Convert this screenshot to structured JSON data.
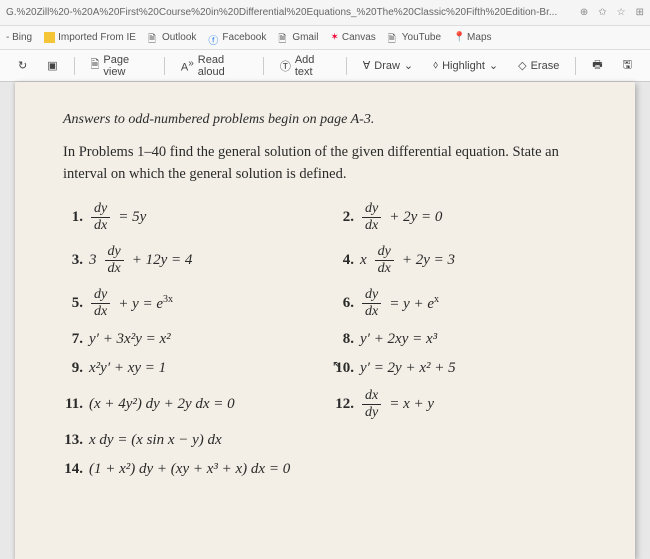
{
  "browser": {
    "url": "G.%20Zill%20-%20A%20First%20Course%20in%20Differential%20Equations_%20The%20Classic%20Fifth%20Edition-Br...",
    "icons": {
      "zoom": "⊕",
      "fav": "✩",
      "star": "☆",
      "app": "⊞"
    }
  },
  "bookmarks": {
    "bing": "- Bing",
    "imported": "Imported From IE",
    "outlook": "Outlook",
    "facebook": "Facebook",
    "gmail": "Gmail",
    "canvas": "Canvas",
    "youtube": "YouTube",
    "maps": "Maps"
  },
  "toolbar": {
    "page_view": "Page view",
    "read_aloud": "Read aloud",
    "add_text": "Add text",
    "draw": "Draw",
    "highlight": "Highlight",
    "erase": "Erase"
  },
  "doc": {
    "intro1": "Answers to odd-numbered problems begin on page A-3.",
    "intro2": "In Problems 1–40 find the general solution of the given differential equation. State an interval on which the general solution is defined.",
    "p1_num": "1.",
    "p1_eq_r": "= 5y",
    "p2_num": "2.",
    "p2_eq_r": "+ 2y = 0",
    "p3_num": "3.",
    "p3_eq_l": "3",
    "p3_eq_r": "+ 12y = 4",
    "p4_num": "4.",
    "p4_eq_l": "x",
    "p4_eq_r": "+ 2y = 3",
    "p5_num": "5.",
    "p5_eq_r": "+ y = e",
    "p6_num": "6.",
    "p6_eq_r": "= y + e",
    "p7_num": "7.",
    "p7_eq": "y′ + 3x²y = x²",
    "p8_num": "8.",
    "p8_eq": "y′ + 2xy = x³",
    "p9_num": "9.",
    "p9_eq": "x²y′ + xy = 1",
    "p10_num": "10.",
    "p10_eq": "y′ = 2y + x² + 5",
    "p11_num": "11.",
    "p11_eq": "(x + 4y²) dy + 2y dx = 0",
    "p12_num": "12.",
    "p12_eq_r": "= x + y",
    "p13_num": "13.",
    "p13_eq": "x dy = (x sin x − y) dx",
    "p14_num": "14.",
    "p14_eq": "(1 + x²) dy + (xy + x³ + x) dx = 0",
    "dy": "dy",
    "dx": "dx"
  },
  "colors": {
    "paper": "#f3efe6",
    "text": "#2a2a2a",
    "chrome_bg": "#f5f5f5",
    "border": "#dddddd"
  }
}
